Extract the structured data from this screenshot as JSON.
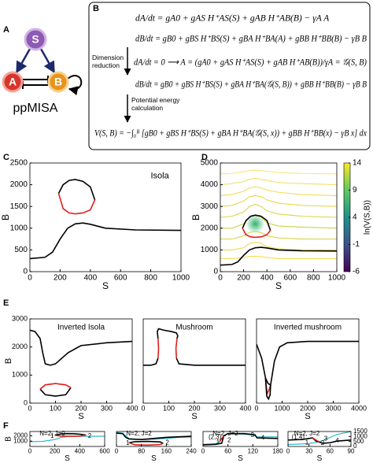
{
  "figure": {
    "panel_labels": [
      "A",
      "B",
      "C",
      "D",
      "E",
      "F"
    ],
    "diagram": {
      "nodes": [
        "S",
        "A",
        "B"
      ],
      "caption": "ppMISA"
    },
    "equations": {
      "lines": [
        "dA/dt = gA0 + gAS H⁺AS(S) + gAB H⁺AB(B) − γA A",
        "dB/dt = gB0 + gBS H⁺BS(S) + gBA H⁺BA(A) + gBB H⁺BB(B) − γB B",
        "dA/dt = 0 ⟶ A = (gA0 + gAS H⁺AS(S) + gAB H⁺AB(B))/γA = 𝒢(S, B)",
        "dB/dt = gB0 + gBS H⁺BS(S) + gBA H⁺BA(𝒢(S, B)) + gBB H⁺BB(B) − γB B",
        "V(S, B) = −∫₀ᴮ [gB0 + gBS H⁺BS(S) + gBA H⁺BA(𝒢(S, x)) + gBB H⁺BB(x) − γB x] dx"
      ],
      "steps": [
        "Dimension reduction",
        "Potential energy calculation"
      ]
    }
  },
  "chart_data": [
    {
      "type": "line",
      "annotations": [
        "Isola"
      ],
      "x_label": "S",
      "y_label": "B",
      "xlim": [
        0,
        1000
      ],
      "xticks": [
        0,
        200,
        400,
        600,
        800,
        1000
      ],
      "ylim": [
        0,
        2500
      ],
      "yticks": [
        0,
        500,
        1000,
        1500,
        2000,
        2500
      ],
      "series": [
        {
          "color": "#000000",
          "x": [
            0,
            100,
            150,
            200,
            250,
            300,
            350,
            400,
            500,
            700,
            1000
          ],
          "values": [
            300,
            330,
            450,
            750,
            1000,
            1100,
            1120,
            1090,
            1000,
            960,
            950
          ]
        },
        {
          "color": "#000000",
          "x": [
            190,
            220,
            260,
            300,
            350,
            400,
            430
          ],
          "values": [
            1800,
            2000,
            2100,
            2120,
            2080,
            1950,
            1650
          ]
        },
        {
          "color": "#e0201b",
          "x": [
            190,
            220,
            260,
            300,
            350,
            400,
            430
          ],
          "values": [
            1800,
            1450,
            1350,
            1330,
            1350,
            1420,
            1650
          ]
        }
      ]
    },
    {
      "type": "line",
      "x_label": "S",
      "y_label": "B",
      "xlim": [
        0,
        1000
      ],
      "xticks": [
        0,
        200,
        400,
        600,
        800,
        1000
      ],
      "ylim": [
        0,
        5000
      ],
      "yticks": [
        0,
        1000,
        2000,
        3000,
        4000,
        5000
      ],
      "colorbar": {
        "lim": [
          -6,
          14
        ],
        "ticks": [
          14,
          9,
          4,
          -1,
          -6
        ],
        "label": "ln(V(S,B))"
      },
      "series": [
        {
          "color": "#f2dc5a",
          "x": [
            0,
            100,
            200,
            250,
            300,
            350,
            400,
            500,
            700,
            1000
          ],
          "values": [
            600,
            600,
            650,
            700,
            700,
            700,
            650,
            600,
            600,
            600
          ]
        },
        {
          "color": "#e8d84e",
          "x": [
            0,
            100,
            200,
            250,
            300,
            350,
            400,
            500,
            700,
            1000
          ],
          "values": [
            1000,
            1000,
            1100,
            1300,
            1350,
            1300,
            1150,
            1050,
            1000,
            1000
          ]
        },
        {
          "color": "#d9d54a",
          "x": [
            0,
            100,
            200,
            250,
            300,
            350,
            400,
            500,
            700,
            1000
          ],
          "values": [
            1500,
            1500,
            1650,
            1800,
            1850,
            1800,
            1650,
            1550,
            1500,
            1500
          ]
        },
        {
          "color": "#c7d24a",
          "x": [
            0,
            100,
            200,
            250,
            300,
            350,
            400,
            500,
            700,
            1000
          ],
          "values": [
            2000,
            2000,
            2200,
            2500,
            2600,
            2500,
            2250,
            2100,
            2050,
            2000
          ]
        },
        {
          "color": "#d9d54a",
          "x": [
            0,
            100,
            200,
            250,
            300,
            350,
            400,
            500,
            700,
            1000
          ],
          "values": [
            2500,
            2550,
            2750,
            3000,
            3100,
            3000,
            2800,
            2650,
            2550,
            2500
          ]
        },
        {
          "color": "#e8d84e",
          "x": [
            0,
            100,
            200,
            250,
            300,
            350,
            400,
            500,
            700,
            1000
          ],
          "values": [
            3000,
            3050,
            3250,
            3450,
            3500,
            3450,
            3300,
            3150,
            3050,
            3000
          ]
        },
        {
          "color": "#f2dc5a",
          "x": [
            0,
            100,
            200,
            250,
            300,
            350,
            400,
            500,
            700,
            1000
          ],
          "values": [
            3500,
            3550,
            3700,
            3850,
            3900,
            3850,
            3750,
            3650,
            3550,
            3500
          ]
        },
        {
          "color": "#f6e06a",
          "x": [
            0,
            100,
            200,
            250,
            300,
            350,
            400,
            500,
            700,
            1000
          ],
          "values": [
            4000,
            4050,
            4150,
            4250,
            4300,
            4250,
            4200,
            4100,
            4050,
            4000
          ]
        },
        {
          "color": "#f9e57a",
          "x": [
            0,
            100,
            200,
            250,
            300,
            350,
            400,
            500,
            700,
            1000
          ],
          "values": [
            4500,
            4520,
            4600,
            4650,
            4680,
            4650,
            4620,
            4560,
            4520,
            4500
          ]
        },
        {
          "color": "#000000",
          "x": [
            0,
            100,
            150,
            200,
            250,
            300,
            350,
            400,
            500,
            700,
            1000
          ],
          "values": [
            300,
            330,
            450,
            750,
            1000,
            1100,
            1120,
            1090,
            1000,
            960,
            950
          ]
        },
        {
          "color": "#000000",
          "x": [
            190,
            220,
            260,
            300,
            350,
            400,
            430
          ],
          "values": [
            2000,
            2350,
            2550,
            2600,
            2550,
            2350,
            1900
          ]
        },
        {
          "color": "#e0201b",
          "x": [
            190,
            220,
            260,
            300,
            350,
            400,
            430
          ],
          "values": [
            2000,
            1700,
            1600,
            1580,
            1600,
            1700,
            1900
          ]
        }
      ]
    },
    {
      "type": "line",
      "annotations": [
        "Inverted Isola"
      ],
      "x_label": "S",
      "y_label": "B",
      "xlim": [
        0,
        400
      ],
      "xticks": [
        0,
        100,
        200,
        300,
        400
      ],
      "ylim": [
        0,
        3000
      ],
      "yticks": [
        0,
        1000,
        2000,
        3000
      ],
      "series": [
        {
          "color": "#000000",
          "x": [
            0,
            20,
            40,
            50,
            60,
            80,
            100,
            150,
            200,
            300,
            400
          ],
          "values": [
            2600,
            2550,
            2300,
            1800,
            1400,
            1350,
            1400,
            1800,
            2050,
            2150,
            2200
          ]
        },
        {
          "color": "#000000",
          "x": [
            40,
            60,
            100,
            140,
            160
          ],
          "values": [
            500,
            300,
            250,
            300,
            550
          ]
        },
        {
          "color": "#e0201b",
          "x": [
            40,
            60,
            100,
            140,
            160
          ],
          "values": [
            500,
            650,
            700,
            650,
            550
          ]
        }
      ]
    },
    {
      "type": "line",
      "annotations": [
        "Mushroom"
      ],
      "x_label": "S",
      "xlim": [
        0,
        400
      ],
      "xticks": [
        0,
        100,
        200,
        300,
        400
      ],
      "ylim": [
        0,
        3000
      ],
      "series": [
        {
          "color": "#000000",
          "x": [
            0,
            30,
            50,
            58
          ],
          "values": [
            1350,
            1350,
            1400,
            1600
          ]
        },
        {
          "color": "#e0201b",
          "x": [
            58,
            60,
            58
          ],
          "values": [
            1600,
            1950,
            2300
          ]
        },
        {
          "color": "#000000",
          "x": [
            58,
            55,
            60,
            80,
            110,
            130,
            135,
            132
          ],
          "values": [
            2300,
            2550,
            2650,
            2600,
            2550,
            2500,
            2400,
            2300
          ]
        },
        {
          "color": "#e0201b",
          "x": [
            132,
            128,
            130
          ],
          "values": [
            2300,
            1950,
            1600
          ]
        },
        {
          "color": "#000000",
          "x": [
            130,
            140,
            200,
            400
          ],
          "values": [
            1600,
            1400,
            1350,
            1350
          ]
        }
      ]
    },
    {
      "type": "line",
      "annotations": [
        "Inverted mushroom"
      ],
      "x_label": "S",
      "xlim": [
        0,
        4000
      ],
      "xticks": [
        0,
        1000,
        2000,
        3000,
        4000
      ],
      "ylim": [
        0,
        3000
      ],
      "series": [
        {
          "color": "#000000",
          "x": [
            0,
            200,
            350,
            450,
            550,
            700,
            900,
            1200,
            2000,
            4000
          ],
          "values": [
            2100,
            1600,
            900,
            700,
            650,
            1500,
            2000,
            2150,
            2200,
            2200
          ]
        },
        {
          "color": "#e0201b",
          "x": [
            350,
            380,
            420,
            480,
            550
          ],
          "values": [
            900,
            600,
            350,
            450,
            650
          ]
        },
        {
          "color": "#000000",
          "x": [
            350,
            400,
            470,
            530,
            550
          ],
          "values": [
            900,
            250,
            150,
            300,
            650
          ]
        }
      ]
    },
    {
      "type": "line",
      "annotations": [
        "N=2, J=0",
        "1",
        "2"
      ],
      "x_label": "S",
      "y_label": "B",
      "xlim": [
        0,
        600
      ],
      "xticks": [
        0,
        200,
        400,
        600
      ],
      "ylim": [
        0,
        2800
      ],
      "yticks": [
        1000,
        2000
      ],
      "series": [
        {
          "color": "#22b5c4",
          "x": [
            0,
            100,
            200,
            250,
            300,
            400,
            600
          ],
          "values": [
            900,
            950,
            1300,
            1700,
            1850,
            1900,
            1900
          ]
        },
        {
          "color": "#000000",
          "x": [
            200,
            250,
            300,
            350,
            400,
            450
          ],
          "values": [
            2100,
            2350,
            2400,
            2380,
            2300,
            2150
          ]
        },
        {
          "color": "#e0201b",
          "x": [
            200,
            250,
            300,
            350,
            400,
            450
          ],
          "values": [
            2100,
            1950,
            1900,
            1900,
            1950,
            2150
          ]
        }
      ]
    },
    {
      "type": "line",
      "annotations": [
        "N=2, J=2",
        "1",
        "2"
      ],
      "x_label": "S",
      "xlim": [
        0,
        240
      ],
      "xticks": [
        0,
        80,
        160,
        240
      ],
      "ylim": [
        0,
        2800
      ],
      "series": [
        {
          "color": "#22b5c4",
          "x": [
            0,
            20,
            30,
            40,
            80,
            120,
            160,
            200,
            240
          ],
          "values": [
            2600,
            2500,
            2000,
            1500,
            1300,
            1350,
            1500,
            1700,
            1750
          ]
        },
        {
          "color": "#000000",
          "x": [
            0,
            20,
            30,
            40,
            80,
            160,
            240
          ],
          "values": [
            2500,
            2400,
            1700,
            1400,
            1300,
            1700,
            1900
          ]
        },
        {
          "color": "#000000",
          "x": [
            40,
            60,
            100,
            140,
            150
          ],
          "values": [
            700,
            900,
            950,
            850,
            600
          ]
        },
        {
          "color": "#e0201b",
          "x": [
            40,
            60,
            100,
            140,
            150
          ],
          "values": [
            700,
            300,
            250,
            350,
            600
          ]
        }
      ]
    },
    {
      "type": "line",
      "annotations": [
        "N=2, J=2",
        "(2,3)",
        "1",
        "2",
        "3",
        "4"
      ],
      "x_label": "S",
      "xlim": [
        0,
        180
      ],
      "xticks": [
        0,
        60,
        120,
        180
      ],
      "ylim": [
        0,
        2800
      ],
      "series": [
        {
          "color": "#22b5c4",
          "x": [
            0,
            30,
            40,
            50,
            60,
            100,
            120,
            130,
            180
          ],
          "values": [
            400,
            500,
            900,
            1900,
            2400,
            2300,
            2100,
            1800,
            1800
          ]
        },
        {
          "color": "#000000",
          "x": [
            0,
            30,
            45,
            50,
            60,
            100,
            125,
            130,
            180
          ],
          "values": [
            300,
            400,
            600,
            2000,
            2400,
            2400,
            2200,
            1600,
            1500
          ]
        },
        {
          "color": "#e0201b",
          "x": [
            40,
            45,
            50
          ],
          "values": [
            900,
            1500,
            2000
          ]
        }
      ]
    },
    {
      "type": "line",
      "annotations": [
        "N=2, J=2",
        "(1,4)",
        "1",
        "2",
        "3",
        "4"
      ],
      "x_label": "S",
      "xlim": [
        0,
        90
      ],
      "xticks": [
        0,
        30,
        60,
        90
      ],
      "ylim": [
        0,
        2800
      ],
      "y2lim": [
        0,
        1500
      ],
      "y2ticks": [
        0,
        500,
        1000,
        1500
      ],
      "series": [
        {
          "color": "#22b5c4",
          "axis": "y2",
          "x": [
            0,
            20,
            30,
            40,
            50,
            60,
            70,
            90
          ],
          "values": [
            200,
            250,
            300,
            400,
            600,
            900,
            1200,
            1500
          ]
        },
        {
          "color": "#000000",
          "x": [
            0,
            20,
            30,
            35,
            40,
            50,
            60,
            70,
            90
          ],
          "values": [
            1200,
            1300,
            1500,
            1600,
            1000,
            600,
            700,
            1000,
            1200
          ]
        },
        {
          "color": "#e0201b",
          "x": [
            35,
            40,
            45
          ],
          "values": [
            1600,
            1200,
            800
          ]
        }
      ]
    }
  ]
}
